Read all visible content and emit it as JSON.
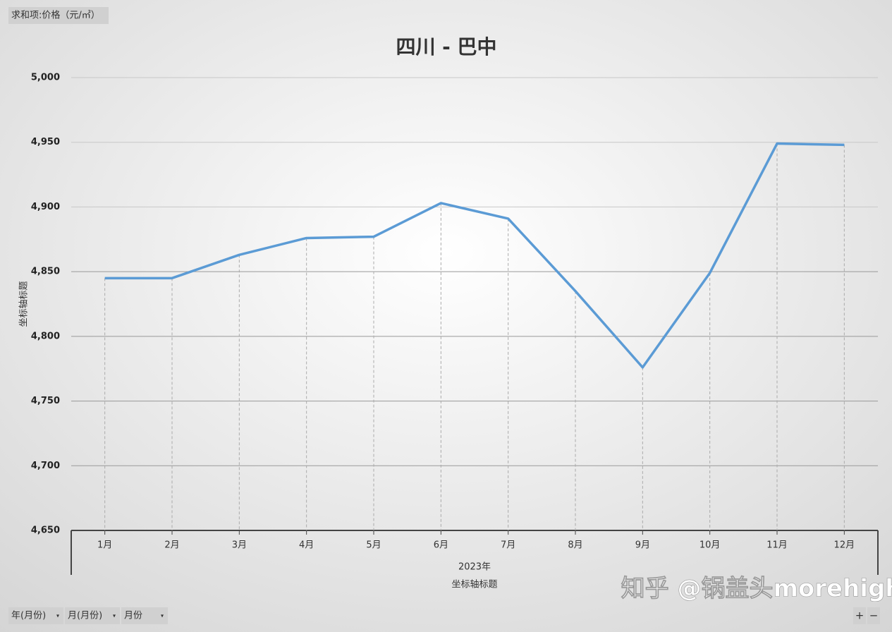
{
  "value_field": "求和项:价格（元/㎡）",
  "field_buttons": [
    "年(月份)",
    "月(月份)",
    "月份"
  ],
  "zoom_buttons": [
    "+",
    "−"
  ],
  "watermark": "知乎 @锅盖头morehigher",
  "chart_data": {
    "type": "line",
    "title": "四川 - 巴中",
    "y_axis_title": "坐标轴标题",
    "x_axis_title": "坐标轴标题",
    "x_group": "2023年",
    "categories": [
      "1月",
      "2月",
      "3月",
      "4月",
      "5月",
      "6月",
      "7月",
      "8月",
      "9月",
      "10月",
      "11月",
      "12月"
    ],
    "values": [
      4845,
      4845,
      4863,
      4876,
      4877,
      4903,
      4891,
      4835,
      4776,
      4849,
      4949,
      4948
    ],
    "color": "#5b9bd5",
    "drop_lines": true,
    "grid": true,
    "ylim": [
      4650,
      5000
    ],
    "yticks": [
      {
        "value": 4650,
        "label": "4,650"
      },
      {
        "value": 4700,
        "label": "4,700"
      },
      {
        "value": 4750,
        "label": "4,750"
      },
      {
        "value": 4800,
        "label": "4,800"
      },
      {
        "value": 4850,
        "label": "4,850"
      },
      {
        "value": 4900,
        "label": "4,900"
      },
      {
        "value": 4950,
        "label": "4,950"
      },
      {
        "value": 5000,
        "label": "5,000"
      }
    ]
  }
}
